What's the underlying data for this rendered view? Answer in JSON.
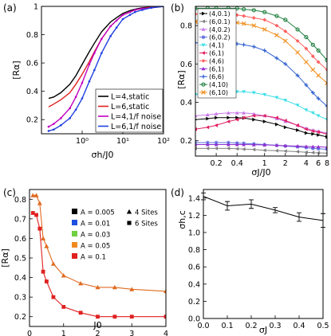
{
  "chart_data": [
    {
      "panel": "(a)",
      "type": "line",
      "xscale": "log",
      "xlim": [
        0.1,
        100
      ],
      "ylim": [
        0.1,
        1.0
      ],
      "xlabel": "σh/J0",
      "ylabel": "[Rα]",
      "xticks": [
        "10⁰",
        "10¹",
        "10²"
      ],
      "yticks": [
        "0.2",
        "0.4",
        "0.6",
        "0.8",
        "1"
      ],
      "legend_position": "bottom-right",
      "series": [
        {
          "name": "L=4,static",
          "color": "#000000",
          "marker": "none",
          "x": [
            0.15,
            0.2,
            0.3,
            0.5,
            0.7,
            1,
            1.5,
            2,
            3,
            5,
            7,
            10,
            15,
            20,
            30,
            50,
            100
          ],
          "y": [
            0.35,
            0.36,
            0.39,
            0.45,
            0.51,
            0.59,
            0.68,
            0.74,
            0.82,
            0.89,
            0.92,
            0.95,
            0.97,
            0.98,
            0.99,
            0.995,
            1.0
          ]
        },
        {
          "name": "L=6,static",
          "color": "#e0201f",
          "marker": "none",
          "x": [
            0.15,
            0.2,
            0.3,
            0.5,
            0.7,
            1,
            1.5,
            2,
            3,
            5,
            7,
            10,
            15,
            20,
            30,
            50,
            100
          ],
          "y": [
            0.29,
            0.31,
            0.34,
            0.39,
            0.45,
            0.52,
            0.61,
            0.68,
            0.77,
            0.86,
            0.9,
            0.94,
            0.96,
            0.975,
            0.985,
            0.995,
            1.0
          ]
        },
        {
          "name": "L=4,1/f noise",
          "color": "#c000c0",
          "marker": "dot",
          "x": [
            0.15,
            0.2,
            0.3,
            0.5,
            0.7,
            1,
            1.5,
            2,
            3,
            5,
            7,
            10,
            15,
            20,
            30,
            50,
            100
          ],
          "y": [
            0.15,
            0.17,
            0.21,
            0.28,
            0.36,
            0.46,
            0.59,
            0.67,
            0.77,
            0.86,
            0.9,
            0.94,
            0.96,
            0.975,
            0.985,
            0.99,
            1.0
          ]
        },
        {
          "name": "L=6,1/f noise",
          "color": "#2040e0",
          "marker": "dot",
          "x": [
            0.15,
            0.2,
            0.3,
            0.5,
            0.7,
            1,
            1.5,
            2,
            3,
            5,
            7,
            10,
            15,
            20,
            30,
            50,
            100
          ],
          "y": [
            0.12,
            0.13,
            0.16,
            0.21,
            0.27,
            0.35,
            0.47,
            0.55,
            0.67,
            0.79,
            0.85,
            0.91,
            0.94,
            0.96,
            0.975,
            0.99,
            1.0
          ]
        }
      ]
    },
    {
      "panel": "(b)",
      "type": "line",
      "xscale": "log",
      "xlim": [
        0.1,
        8
      ],
      "ylim": [
        0.12,
        0.9
      ],
      "xlabel": "σJ/J0",
      "ylabel": "[Rα]",
      "xticks": [
        "0.2",
        "0.4",
        "1",
        "2",
        "4",
        "6",
        "8"
      ],
      "yticks": [
        "0.2",
        "0.4",
        "0.6",
        "0.8"
      ],
      "legend_position": "top-left",
      "x": [
        0.1,
        0.15,
        0.2,
        0.3,
        0.4,
        0.5,
        0.7,
        1,
        1.5,
        2,
        3,
        4,
        5,
        6,
        8
      ],
      "series": [
        {
          "name": "(4,0.1)",
          "color": "#000000",
          "marker": "triangle-right",
          "y": [
            0.31,
            0.315,
            0.32,
            0.32,
            0.32,
            0.318,
            0.31,
            0.3,
            0.285,
            0.27,
            0.255,
            0.24,
            0.235,
            0.23,
            0.22
          ]
        },
        {
          "name": "(6,0.1)",
          "color": "#808080",
          "marker": "triangle-left",
          "y": [
            0.16,
            0.16,
            0.16,
            0.16,
            0.158,
            0.156,
            0.154,
            0.15,
            0.148,
            0.146,
            0.143,
            0.14,
            0.138,
            0.137,
            0.135
          ]
        },
        {
          "name": "(4,0.2)",
          "color": "#c878e8",
          "marker": "triangle-up",
          "y": [
            0.33,
            0.335,
            0.34,
            0.345,
            0.345,
            0.345,
            0.34,
            0.33,
            0.315,
            0.3,
            0.28,
            0.265,
            0.255,
            0.25,
            0.24
          ]
        },
        {
          "name": "(6,0.2)",
          "color": "#6070e0",
          "marker": "star",
          "y": [
            0.19,
            0.19,
            0.19,
            0.19,
            0.188,
            0.186,
            0.183,
            0.18,
            0.176,
            0.172,
            0.168,
            0.164,
            0.16,
            0.158,
            0.155
          ]
        },
        {
          "name": "(4,1)",
          "color": "#40e0e8",
          "marker": "triangle-down",
          "y": [
            0.44,
            0.445,
            0.45,
            0.455,
            0.455,
            0.455,
            0.45,
            0.44,
            0.425,
            0.41,
            0.385,
            0.36,
            0.345,
            0.33,
            0.31
          ]
        },
        {
          "name": "(6,1)",
          "color": "#e02060",
          "marker": "triangle-left",
          "y": [
            0.26,
            0.27,
            0.28,
            0.3,
            0.31,
            0.32,
            0.33,
            0.33,
            0.32,
            0.305,
            0.28,
            0.26,
            0.25,
            0.245,
            0.235
          ]
        },
        {
          "name": "(4,6)",
          "color": "#ff6060",
          "marker": "diamond",
          "y": [
            0.86,
            0.86,
            0.86,
            0.86,
            0.855,
            0.85,
            0.84,
            0.83,
            0.8,
            0.77,
            0.72,
            0.68,
            0.64,
            0.61,
            0.57
          ]
        },
        {
          "name": "(6,1)",
          "color": "#9030d0",
          "marker": "triangle-up",
          "y": [
            0.18,
            0.18,
            0.18,
            0.18,
            0.18,
            0.18,
            0.179,
            0.178,
            0.176,
            0.174,
            0.172,
            0.17,
            0.169,
            0.168,
            0.166
          ]
        },
        {
          "name": "(6,6)",
          "color": "#3060d0",
          "marker": "plus",
          "y": [
            0.71,
            0.71,
            0.71,
            0.71,
            0.705,
            0.7,
            0.69,
            0.67,
            0.63,
            0.6,
            0.54,
            0.49,
            0.45,
            0.42,
            0.38
          ]
        },
        {
          "name": "(4,10)",
          "color": "#208040",
          "marker": "circle",
          "y": [
            0.89,
            0.89,
            0.89,
            0.89,
            0.89,
            0.885,
            0.88,
            0.87,
            0.85,
            0.83,
            0.78,
            0.74,
            0.7,
            0.67,
            0.62
          ]
        },
        {
          "name": "(6,10)",
          "color": "#f09020",
          "marker": "x",
          "y": [
            0.82,
            0.82,
            0.82,
            0.82,
            0.815,
            0.81,
            0.8,
            0.78,
            0.75,
            0.72,
            0.66,
            0.61,
            0.57,
            0.54,
            0.5
          ]
        }
      ]
    },
    {
      "panel": "(c)",
      "type": "scatter",
      "xlim": [
        0,
        4
      ],
      "ylim": [
        0.15,
        0.85
      ],
      "xlabel": "J0",
      "ylabel": "[Rα]",
      "xticks": [
        "0",
        "1",
        "2",
        "3",
        "4"
      ],
      "yticks": [
        "0.2",
        "0.3",
        "0.4",
        "0.5",
        "0.6",
        "0.7",
        "0.8"
      ],
      "legend_position": "top-right",
      "legend_A": [
        {
          "label": "A = 0.005",
          "color": "#000000"
        },
        {
          "label": "A = 0.01",
          "color": "#1f4fe0"
        },
        {
          "label": "A = 0.03",
          "color": "#70d040"
        },
        {
          "label": "A = 0.05",
          "color": "#f08a20"
        },
        {
          "label": "A = 0.1",
          "color": "#e02020"
        }
      ],
      "legend_sites": [
        {
          "label": "4 Sites",
          "marker": "triangle"
        },
        {
          "label": "6 Sites",
          "marker": "square"
        }
      ],
      "x": [
        0.1,
        0.2,
        0.3,
        0.4,
        0.5,
        0.7,
        1,
        1.5,
        2,
        2.5,
        3,
        4
      ],
      "series": [
        {
          "name": "4 Sites",
          "color": "#e06a20",
          "marker": "triangle",
          "y": [
            0.82,
            0.82,
            0.78,
            0.6,
            0.56,
            0.47,
            0.41,
            0.37,
            0.35,
            0.35,
            0.34,
            0.33
          ]
        },
        {
          "name": "6 Sites",
          "color": "#e02020",
          "marker": "square",
          "y": [
            0.73,
            0.72,
            0.65,
            0.43,
            0.38,
            0.3,
            0.25,
            0.22,
            0.2,
            0.2,
            0.2,
            0.2
          ]
        }
      ]
    },
    {
      "panel": "(d)",
      "type": "line",
      "xlim": [
        0,
        0.5
      ],
      "ylim": [
        0,
        1.5
      ],
      "xlabel": "σJ",
      "ylabel": "σh,c",
      "xticks": [
        "0.0",
        "0.1",
        "0.2",
        "0.3",
        "0.4",
        "0.5"
      ],
      "yticks": [
        "0.0",
        "0.2",
        "0.4",
        "0.6",
        "0.8",
        "1.0",
        "1.2",
        "1.4"
      ],
      "series": [
        {
          "name": "",
          "color": "#000000",
          "x": [
            0,
            0.1,
            0.2,
            0.3,
            0.4,
            0.5
          ],
          "y": [
            1.42,
            1.31,
            1.33,
            1.26,
            1.18,
            1.14
          ],
          "err": [
            0.04,
            0.05,
            0.05,
            0.03,
            0.05,
            0.08
          ]
        }
      ]
    }
  ]
}
